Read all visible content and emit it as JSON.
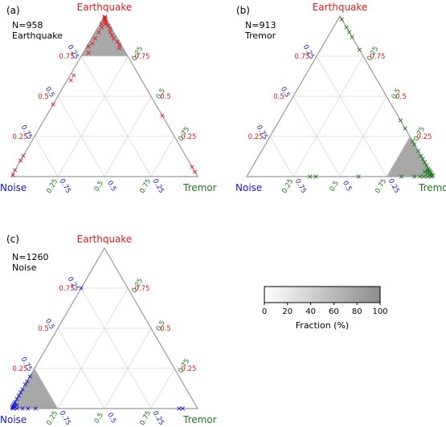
{
  "colors": {
    "earthquake": "#e31a1c",
    "tremor": "#1a7a1a",
    "noise": "#1515d6",
    "tri_border": "#999999",
    "grid": "#d8d8d8",
    "density_fill": "#a8a8a8",
    "text": "#000000"
  },
  "tick_labels": [
    "0.25",
    "0.5",
    "0.75"
  ],
  "vertex_labels": {
    "earthquake": "Earthquake",
    "tremor": "Tremor",
    "noise": "Noise"
  },
  "colorbar": {
    "label": "Fraction (%)",
    "ticks": [
      "0",
      "20",
      "40",
      "60",
      "80",
      "100"
    ],
    "range": [
      0,
      100
    ]
  },
  "chart_data": [
    {
      "type": "ternary-scatter",
      "panel_label": "(a)",
      "count_label": "N=958",
      "class_label": "Earthquake",
      "density_region": {
        "vertex": "earthquake",
        "min_fraction": 0.75
      },
      "points": [
        [
          0.995,
          0.004,
          0.001
        ],
        [
          0.99,
          0.006,
          0.004
        ],
        [
          0.985,
          0.01,
          0.005
        ],
        [
          0.98,
          0.015,
          0.005
        ],
        [
          0.975,
          0.012,
          0.013
        ],
        [
          0.97,
          0.02,
          0.01
        ],
        [
          0.96,
          0.03,
          0.01
        ],
        [
          0.95,
          0.03,
          0.02
        ],
        [
          0.94,
          0.05,
          0.01
        ],
        [
          0.92,
          0.07,
          0.01
        ],
        [
          0.9,
          0.08,
          0.02
        ],
        [
          0.88,
          0.1,
          0.02
        ],
        [
          0.86,
          0.12,
          0.02
        ],
        [
          0.84,
          0.15,
          0.01
        ],
        [
          0.82,
          0.17,
          0.01
        ],
        [
          0.8,
          0.18,
          0.02
        ],
        [
          0.95,
          0.01,
          0.04
        ],
        [
          0.93,
          0.02,
          0.05
        ],
        [
          0.9,
          0.02,
          0.08
        ],
        [
          0.86,
          0.02,
          0.12
        ],
        [
          0.83,
          0.02,
          0.15
        ],
        [
          0.81,
          0.01,
          0.18
        ],
        [
          0.77,
          0.03,
          0.2
        ],
        [
          0.63,
          0.02,
          0.35
        ],
        [
          0.6,
          0.02,
          0.38
        ],
        [
          0.45,
          0.0,
          0.55
        ],
        [
          0.38,
          0.62,
          0.0
        ],
        [
          0.13,
          0.0,
          0.87
        ],
        [
          0.1,
          0.0,
          0.9
        ],
        [
          0.04,
          0.0,
          0.96
        ],
        [
          0.03,
          0.97,
          0.0
        ],
        [
          0.06,
          0.94,
          0.0
        ],
        [
          0.01,
          0.005,
          0.985
        ]
      ]
    },
    {
      "type": "ternary-scatter",
      "panel_label": "(b)",
      "count_label": "N=913",
      "class_label": "Tremor",
      "density_region": {
        "vertex": "tremor",
        "min_fraction": 0.75
      },
      "points": [
        [
          0.98,
          0.02,
          0.0
        ],
        [
          0.93,
          0.07,
          0.0
        ],
        [
          0.9,
          0.1,
          0.0
        ],
        [
          0.87,
          0.13,
          0.0
        ],
        [
          0.79,
          0.21,
          0.0
        ],
        [
          0.35,
          0.65,
          0.0
        ],
        [
          0.3,
          0.7,
          0.0
        ],
        [
          0.22,
          0.78,
          0.0
        ],
        [
          0.2,
          0.8,
          0.0
        ],
        [
          0.16,
          0.84,
          0.0
        ],
        [
          0.13,
          0.87,
          0.0
        ],
        [
          0.11,
          0.89,
          0.0
        ],
        [
          0.09,
          0.91,
          0.0
        ],
        [
          0.07,
          0.93,
          0.0
        ],
        [
          0.05,
          0.95,
          0.0
        ],
        [
          0.04,
          0.96,
          0.0
        ],
        [
          0.03,
          0.97,
          0.0
        ],
        [
          0.02,
          0.98,
          0.0
        ],
        [
          0.01,
          0.99,
          0.0
        ],
        [
          0.005,
          0.995,
          0.0
        ],
        [
          0.0,
          0.99,
          0.01
        ],
        [
          0.0,
          0.97,
          0.03
        ],
        [
          0.0,
          0.95,
          0.05
        ],
        [
          0.0,
          0.93,
          0.07
        ],
        [
          0.0,
          0.9,
          0.1
        ],
        [
          0.0,
          0.83,
          0.17
        ],
        [
          0.0,
          0.6,
          0.4
        ],
        [
          0.0,
          0.37,
          0.63
        ],
        [
          0.0,
          0.34,
          0.66
        ],
        [
          0.02,
          0.96,
          0.02
        ],
        [
          0.03,
          0.94,
          0.03
        ],
        [
          0.01,
          0.98,
          0.01
        ],
        [
          0.04,
          0.95,
          0.01
        ]
      ]
    },
    {
      "type": "ternary-scatter",
      "panel_label": "(c)",
      "count_label": "N=1260",
      "class_label": "Noise",
      "density_region": {
        "vertex": "noise",
        "min_fraction": 0.75
      },
      "points": [
        [
          0.75,
          0.0,
          0.25
        ],
        [
          0.2,
          0.0,
          0.8
        ],
        [
          0.17,
          0.0,
          0.83
        ],
        [
          0.15,
          0.0,
          0.85
        ],
        [
          0.12,
          0.0,
          0.88
        ],
        [
          0.1,
          0.0,
          0.9
        ],
        [
          0.08,
          0.0,
          0.92
        ],
        [
          0.06,
          0.0,
          0.94
        ],
        [
          0.04,
          0.0,
          0.96
        ],
        [
          0.03,
          0.0,
          0.97
        ],
        [
          0.02,
          0.0,
          0.98
        ],
        [
          0.01,
          0.0,
          0.99
        ],
        [
          0.005,
          0.005,
          0.99
        ],
        [
          0.0,
          0.01,
          0.99
        ],
        [
          0.0,
          0.03,
          0.97
        ],
        [
          0.0,
          0.06,
          0.94
        ],
        [
          0.0,
          0.09,
          0.91
        ],
        [
          0.0,
          0.13,
          0.87
        ],
        [
          0.0,
          0.9,
          0.1
        ],
        [
          0.0,
          0.92,
          0.08
        ],
        [
          0.01,
          0.01,
          0.98
        ],
        [
          0.02,
          0.02,
          0.96
        ]
      ]
    }
  ]
}
